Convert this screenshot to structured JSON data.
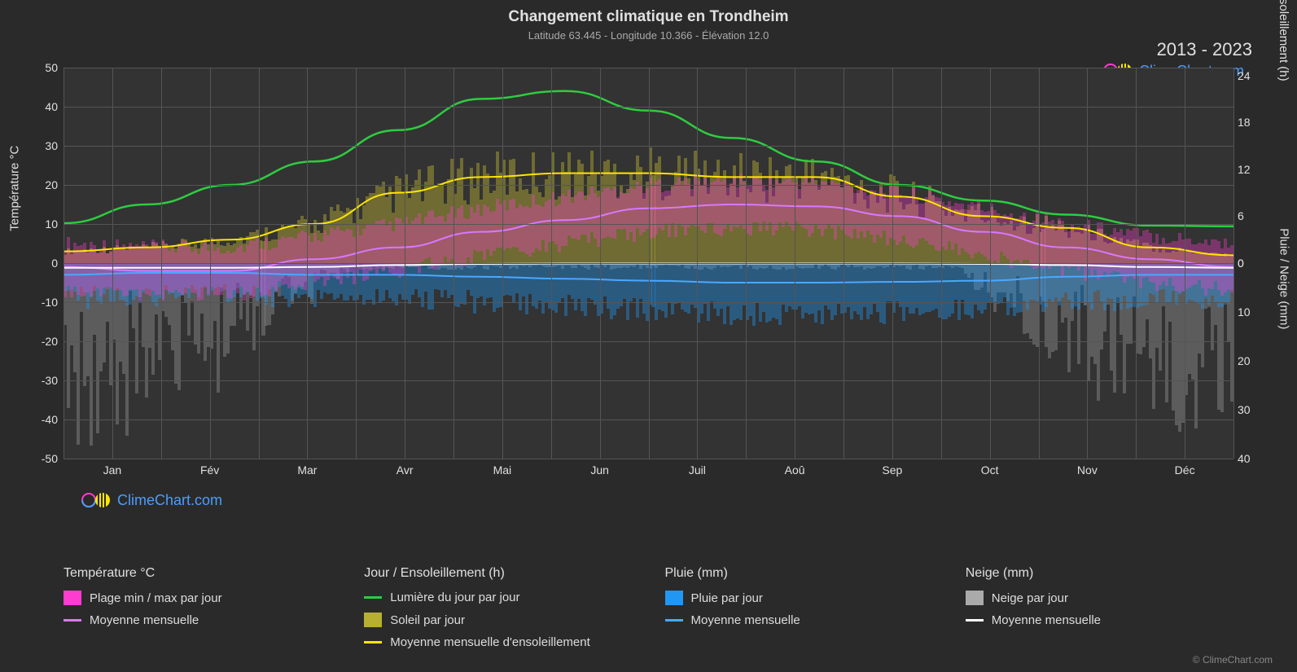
{
  "title": "Changement climatique en Trondheim",
  "subtitle": "Latitude 63.445 - Longitude 10.366 - Élévation 12.0",
  "year_range": "2013 - 2023",
  "brand": "ClimeChart.com",
  "copyright": "© ClimeChart.com",
  "colors": {
    "background": "#2a2a2a",
    "plot_bg": "#333333",
    "grid": "#555555",
    "text": "#e0e0e0",
    "green": "#2ecc40",
    "yellow": "#ffe600",
    "yellow_fill": "#b8b030",
    "magenta": "#ff3cd0",
    "violet_line": "#d878ff",
    "blue": "#2196f3",
    "blue_line": "#4aa8ff",
    "white": "#ffffff",
    "gray": "#aaaaaa",
    "brand": "#4a9eff"
  },
  "axis_left": {
    "title": "Température °C",
    "min": -50,
    "max": 50,
    "step": 10
  },
  "axis_right_top": {
    "title": "Jour / Ensoleillement (h)",
    "min": 0,
    "max": 24,
    "step": 6
  },
  "axis_right_bottom": {
    "title": "Pluie / Neige (mm)",
    "min": 0,
    "max": 40,
    "step": 10
  },
  "months": [
    "Jan",
    "Fév",
    "Mar",
    "Avr",
    "Mai",
    "Jun",
    "Juil",
    "Aoû",
    "Sep",
    "Oct",
    "Nov",
    "Déc"
  ],
  "series": {
    "daylight": [
      5.1,
      7.5,
      10,
      13,
      17,
      21,
      22,
      19.5,
      16,
      13,
      10,
      8,
      6.2,
      4.8,
      4.7
    ],
    "sunshine_avg": [
      1.5,
      2,
      3,
      5,
      9,
      11,
      11.5,
      11.5,
      11,
      11,
      8.5,
      6,
      4.5,
      2,
      1
    ],
    "temp_avg": [
      -1,
      -2,
      -2,
      1,
      4,
      8,
      11,
      14,
      15,
      14.5,
      12,
      8,
      4,
      1,
      -1
    ],
    "rain_avg": [
      -3,
      -2.5,
      -2.5,
      -3,
      -3,
      -3.5,
      -4,
      -4.5,
      -5,
      -5,
      -4.8,
      -4.5,
      -3.5,
      -3,
      -3
    ],
    "snow_avg": [
      -1.2,
      -1.2,
      -1.2,
      -1,
      -0.5,
      -0.2,
      -0.1,
      -0.1,
      -0.1,
      -0.1,
      -0.1,
      -0.2,
      -0.5,
      -1,
      -1.2
    ]
  },
  "legend": {
    "group1": {
      "title": "Température °C",
      "items": [
        {
          "type": "swatch",
          "color": "#ff3cd0",
          "label": "Plage min / max par jour"
        },
        {
          "type": "line",
          "color": "#d878ff",
          "label": "Moyenne mensuelle"
        }
      ]
    },
    "group2": {
      "title": "Jour / Ensoleillement (h)",
      "items": [
        {
          "type": "line",
          "color": "#2ecc40",
          "label": "Lumière du jour par jour"
        },
        {
          "type": "swatch",
          "color": "#b8b030",
          "label": "Soleil par jour"
        },
        {
          "type": "line",
          "color": "#ffe600",
          "label": "Moyenne mensuelle d'ensoleillement"
        }
      ]
    },
    "group3": {
      "title": "Pluie (mm)",
      "items": [
        {
          "type": "swatch",
          "color": "#2196f3",
          "label": "Pluie par jour"
        },
        {
          "type": "line",
          "color": "#4aa8ff",
          "label": "Moyenne mensuelle"
        }
      ]
    },
    "group4": {
      "title": "Neige (mm)",
      "items": [
        {
          "type": "swatch",
          "color": "#aaaaaa",
          "label": "Neige par jour"
        },
        {
          "type": "line",
          "color": "#ffffff",
          "label": "Moyenne mensuelle"
        }
      ]
    }
  }
}
